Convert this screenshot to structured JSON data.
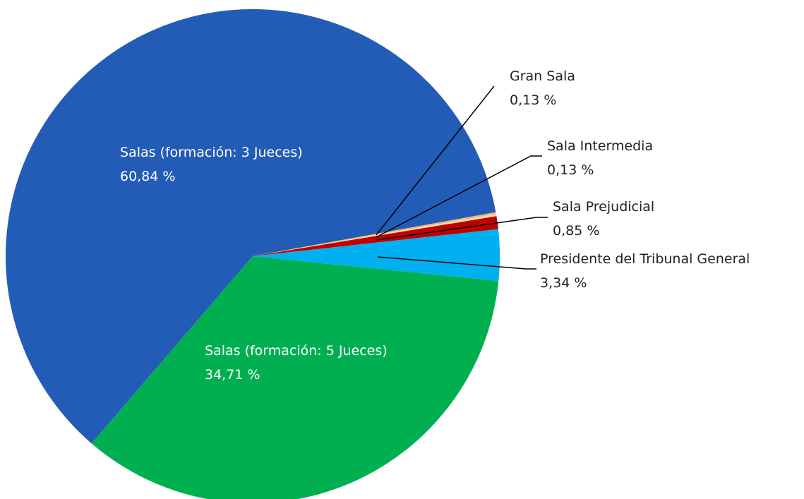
{
  "chart_data": {
    "type": "pie",
    "categories": [
      "Salas (formación: 3 Jueces)",
      "Gran Sala",
      "Sala Intermedia",
      "Sala Prejudicial",
      "Presidente del Tribunal General",
      "Salas (formación: 5 Jueces)"
    ],
    "values": [
      60.84,
      0.13,
      0.13,
      0.85,
      3.34,
      34.71
    ],
    "value_labels": [
      "60,84 %",
      "0,13 %",
      "0,13 %",
      "0,85 %",
      "3,34 %",
      "34,71 %"
    ],
    "colors": [
      "#235cb7",
      "#f4b183",
      "#ffe699",
      "#c00000",
      "#00b0f0",
      "#00b050"
    ]
  }
}
